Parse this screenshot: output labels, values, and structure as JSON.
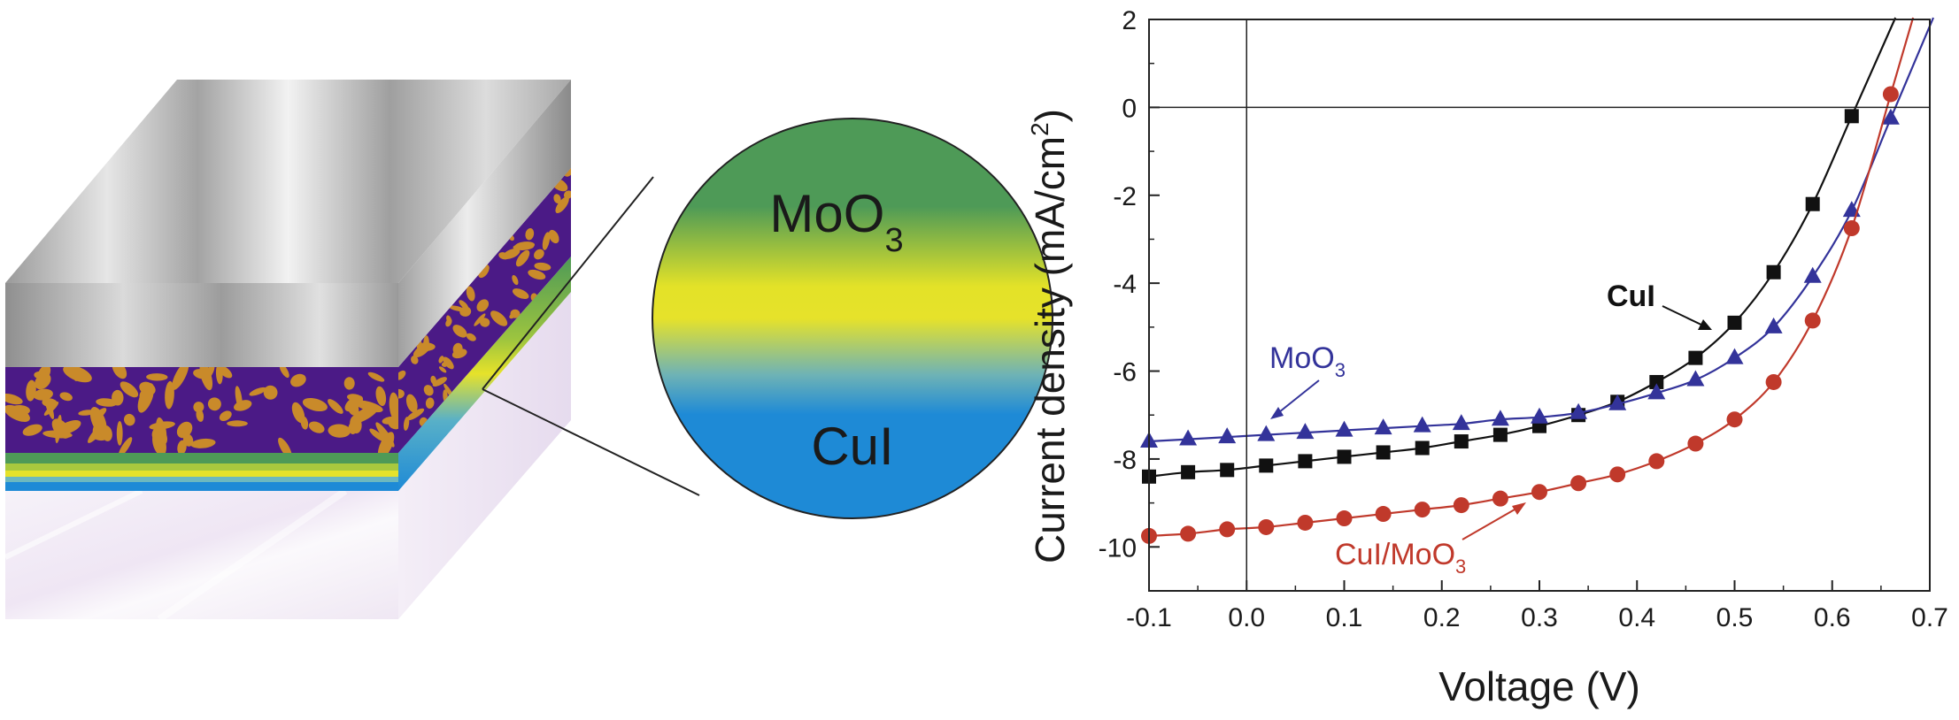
{
  "diagram": {
    "zoom_top_label_main": "MoO",
    "zoom_top_label_sub": "3",
    "zoom_bottom_label": "CuI",
    "colors": {
      "metal_light": "#e8e8e8",
      "metal_dark": "#8c8c8c",
      "active_purple": "#4b1a86",
      "active_orange": "#c98a2a",
      "moo3_green": "#4e9a57",
      "yellow": "#e6e22a",
      "cui_blue": "#1e8ad6",
      "glass": "#f3edf7"
    }
  },
  "chart_data": {
    "type": "scatter",
    "xlabel": "Voltage (V)",
    "ylabel_main": "Current density (mA/cm",
    "ylabel_sup": "2",
    "ylabel_tail": ")",
    "xlim": [
      -0.1,
      0.7
    ],
    "ylim": [
      -11,
      2
    ],
    "x_ticks": [
      -0.1,
      0.0,
      0.1,
      0.2,
      0.3,
      0.4,
      0.5,
      0.6,
      0.7
    ],
    "x_tick_labels": [
      "-0.1",
      "0.0",
      "0.1",
      "0.2",
      "0.3",
      "0.4",
      "0.5",
      "0.6",
      "0.7"
    ],
    "y_ticks": [
      -10,
      -8,
      -6,
      -4,
      -2,
      0,
      2
    ],
    "y_tick_labels": [
      "-10",
      "-8",
      "-6",
      "-4",
      "-2",
      "0",
      "2"
    ],
    "grid": false,
    "zero_lines": true,
    "series": [
      {
        "label_main": "CuI",
        "label_sub": "",
        "marker": "square",
        "color": "#111111",
        "x": [
          -0.1,
          -0.06,
          -0.02,
          0.02,
          0.06,
          0.1,
          0.14,
          0.18,
          0.22,
          0.26,
          0.3,
          0.34,
          0.38,
          0.42,
          0.46,
          0.5,
          0.54,
          0.58,
          0.62
        ],
        "y": [
          -8.4,
          -8.3,
          -8.25,
          -8.15,
          -8.05,
          -7.95,
          -7.85,
          -7.75,
          -7.6,
          -7.45,
          -7.25,
          -7.0,
          -6.7,
          -6.25,
          -5.7,
          -4.9,
          -3.75,
          -2.2,
          -0.2
        ]
      },
      {
        "label_main": "MoO",
        "label_sub": "3",
        "marker": "triangle",
        "color": "#33339a",
        "x": [
          -0.1,
          -0.06,
          -0.02,
          0.02,
          0.06,
          0.1,
          0.14,
          0.18,
          0.22,
          0.26,
          0.3,
          0.34,
          0.38,
          0.42,
          0.46,
          0.5,
          0.54,
          0.58,
          0.62,
          0.66
        ],
        "y": [
          -7.6,
          -7.55,
          -7.5,
          -7.45,
          -7.4,
          -7.35,
          -7.3,
          -7.25,
          -7.2,
          -7.1,
          -7.05,
          -6.95,
          -6.75,
          -6.5,
          -6.2,
          -5.7,
          -5.0,
          -3.85,
          -2.35,
          -0.25
        ]
      },
      {
        "label_main": "CuI/MoO",
        "label_sub": "3",
        "marker": "circle",
        "color": "#c0392b",
        "x": [
          -0.1,
          -0.06,
          -0.02,
          0.02,
          0.06,
          0.1,
          0.14,
          0.18,
          0.22,
          0.26,
          0.3,
          0.34,
          0.38,
          0.42,
          0.46,
          0.5,
          0.54,
          0.58,
          0.62,
          0.66
        ],
        "y": [
          -9.75,
          -9.7,
          -9.6,
          -9.55,
          -9.45,
          -9.35,
          -9.25,
          -9.15,
          -9.05,
          -8.9,
          -8.75,
          -8.55,
          -8.35,
          -8.05,
          -7.65,
          -7.1,
          -6.25,
          -4.85,
          -2.75,
          0.3
        ]
      }
    ]
  }
}
